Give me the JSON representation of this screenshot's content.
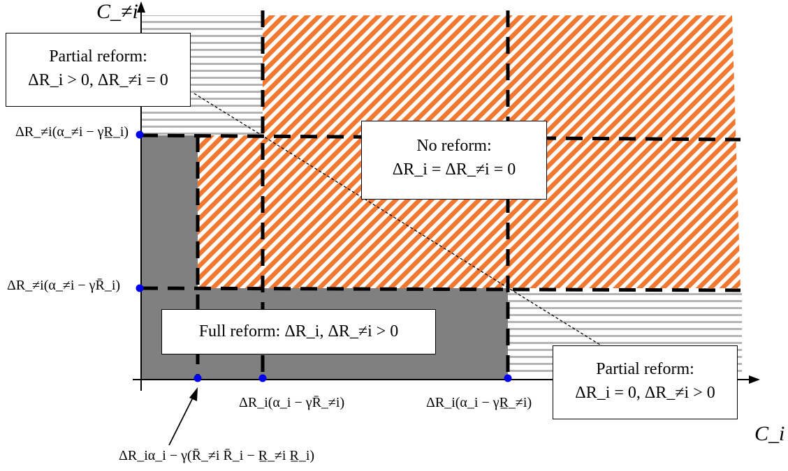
{
  "axes": {
    "x_label": "C_i",
    "y_label": "C_≠i"
  },
  "y_ticks": [
    "ΔR_≠i(α_≠i − γR̲_i)",
    "ΔR_≠i(α_≠i − γR̄_i)"
  ],
  "x_ticks": [
    "ΔR_i(α_i − γR̄_≠i)",
    "ΔR_i(α_i − γR̲_≠i)"
  ],
  "x_tick_arrow_label": "ΔR_iα_i − γ(R̄_≠i R̄_i − R̲_≠i R̲_i)",
  "regions": {
    "partial_reform_top": {
      "title": "Partial reform:",
      "condition": "ΔR_i > 0, ΔR_≠i = 0"
    },
    "no_reform": {
      "title": "No reform:",
      "condition": "ΔR_i = ΔR_≠i = 0"
    },
    "full_reform": {
      "title": "Full reform:",
      "condition": "ΔR_i, ΔR_≠i > 0"
    },
    "partial_reform_bottom": {
      "title": "Partial reform:",
      "condition": "ΔR_i = 0, ΔR_≠i > 0"
    }
  },
  "colors": {
    "full_reform_fill": "#808080",
    "no_reform_hatch": "#f07830",
    "partial_stripe": "#b4b4b4",
    "marker": "#0000ee"
  }
}
